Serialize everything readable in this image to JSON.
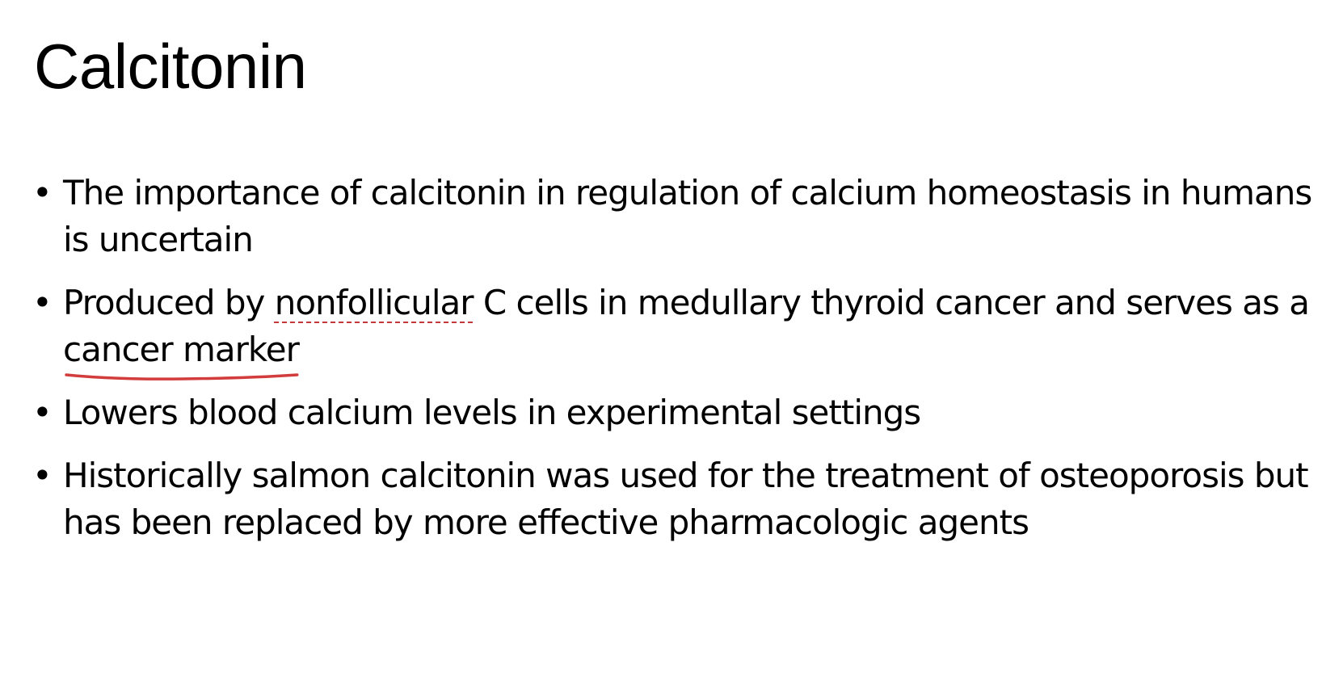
{
  "slide": {
    "title": "Calcitonin",
    "accent_color": "#d23c3c",
    "bullet_glyph": "•",
    "bullets": [
      {
        "text": "The importance of calcitonin in regulation of calcium homeostasis in humans is uncertain"
      },
      {
        "before": "Produced by ",
        "dotted": "nonfollicular",
        "middle": " C cells in medullary thyroid cancer and serves as a ",
        "underlined": "cancer marker",
        "after": ""
      },
      {
        "text": "Lowers blood calcium levels in experimental settings"
      },
      {
        "text": "Historically salmon calcitonin was used for the treatment of osteoporosis but has been replaced by more effective pharmacologic agents"
      }
    ]
  }
}
